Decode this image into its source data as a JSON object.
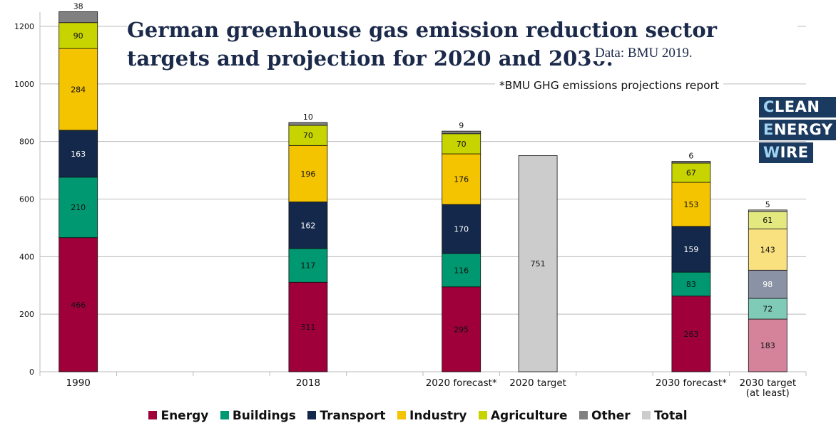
{
  "title": "German greenhouse gas emission reduction sector targets and projection for 2020 and 2030.",
  "source": "Data: BMU 2019.",
  "note": "*BMU GHG emissions projections report",
  "logo": {
    "line1": "CLEAN",
    "line2": "ENERGY",
    "line3": "WIRE"
  },
  "legend": [
    {
      "name": "Energy",
      "color": "#a0003a"
    },
    {
      "name": "Buildings",
      "color": "#009870"
    },
    {
      "name": "Transport",
      "color": "#14284b"
    },
    {
      "name": "Industry",
      "color": "#f5c400"
    },
    {
      "name": "Agriculture",
      "color": "#c7d400"
    },
    {
      "name": "Other",
      "color": "#808080"
    },
    {
      "name": "Total",
      "color": "#cccccc"
    }
  ],
  "chart_data": {
    "type": "bar",
    "stacked": true,
    "ylim": [
      0,
      1250
    ],
    "yticks": [
      0,
      200,
      400,
      600,
      800,
      1000,
      1200
    ],
    "grid": true,
    "legend_position": "bottom",
    "categories": [
      {
        "label": "1990",
        "segments": [
          {
            "series": "Energy",
            "value": 466
          },
          {
            "series": "Buildings",
            "value": 210
          },
          {
            "series": "Transport",
            "value": 163
          },
          {
            "series": "Industry",
            "value": 284
          },
          {
            "series": "Agriculture",
            "value": 90
          },
          {
            "series": "Other",
            "value": 38
          }
        ]
      },
      {
        "label": "",
        "segments": []
      },
      {
        "label": "",
        "segments": []
      },
      {
        "label": "2018",
        "segments": [
          {
            "series": "Energy",
            "value": 311
          },
          {
            "series": "Buildings",
            "value": 117
          },
          {
            "series": "Transport",
            "value": 162
          },
          {
            "series": "Industry",
            "value": 196
          },
          {
            "series": "Agriculture",
            "value": 70
          },
          {
            "series": "Other",
            "value": 10
          }
        ]
      },
      {
        "label": "",
        "segments": []
      },
      {
        "label": "2020 forecast*",
        "segments": [
          {
            "series": "Energy",
            "value": 295
          },
          {
            "series": "Buildings",
            "value": 116
          },
          {
            "series": "Transport",
            "value": 170
          },
          {
            "series": "Industry",
            "value": 176
          },
          {
            "series": "Agriculture",
            "value": 70
          },
          {
            "series": "Other",
            "value": 9
          }
        ]
      },
      {
        "label": "2020 target",
        "segments": [
          {
            "series": "Total",
            "value": 751
          }
        ]
      },
      {
        "label": "",
        "segments": []
      },
      {
        "label": "2030 forecast*",
        "segments": [
          {
            "series": "Energy",
            "value": 263
          },
          {
            "series": "Buildings",
            "value": 83
          },
          {
            "series": "Transport",
            "value": 159
          },
          {
            "series": "Industry",
            "value": 153
          },
          {
            "series": "Agriculture",
            "value": 67
          },
          {
            "series": "Other",
            "value": 6
          }
        ]
      },
      {
        "label": "2030 target (at least)",
        "label_lines": [
          "2030 target",
          "(at least)"
        ],
        "light": true,
        "segments": [
          {
            "series": "Energy",
            "value": 183
          },
          {
            "series": "Buildings",
            "value": 72
          },
          {
            "series": "Transport",
            "value": 98
          },
          {
            "series": "Industry",
            "value": 143
          },
          {
            "series": "Agriculture",
            "value": 61
          },
          {
            "series": "Other",
            "value": 5
          }
        ]
      }
    ],
    "light_colors": {
      "Energy": "#d4839b",
      "Buildings": "#80cbb7",
      "Transport": "#8a93a5",
      "Industry": "#fae17f",
      "Agriculture": "#e3e97f",
      "Other": "#bfbfbf"
    },
    "label_colors": {
      "Energy": "#111111",
      "Buildings": "#111111",
      "Transport": "#ffffff",
      "Industry": "#111111",
      "Agriculture": "#111111",
      "Other": "#111111",
      "Total": "#111111"
    }
  }
}
